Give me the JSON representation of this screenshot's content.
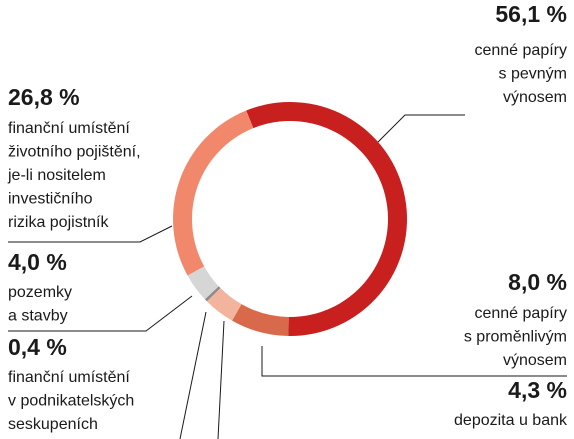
{
  "chart_data": {
    "type": "donut",
    "values": [
      56.1,
      8.0,
      4.3,
      0.4,
      4.0,
      26.8
    ],
    "value_labels": [
      "56,1 %",
      "8,0 %",
      "4,3 %",
      "0,4 %",
      "4,0 %",
      "26,8 %"
    ],
    "categories": [
      [
        "cenné papíry",
        "s pevným",
        "výnosem"
      ],
      [
        "cenné papíry",
        "s proměnlivým",
        "výnosem"
      ],
      [
        "depozita u bank"
      ],
      [
        "finanční umístění",
        "v podnikatelských",
        "seskupeních"
      ],
      [
        "pozemky",
        "a stavby"
      ],
      [
        "finanční umístění",
        "životního pojištění,",
        "je-li nositelem",
        "investičního",
        "rizika pojistník"
      ]
    ],
    "colors": [
      "#c8201f",
      "#d86a4b",
      "#f3b49e",
      "#8c8c8c",
      "#d6d6d6",
      "#f2886b"
    ]
  }
}
